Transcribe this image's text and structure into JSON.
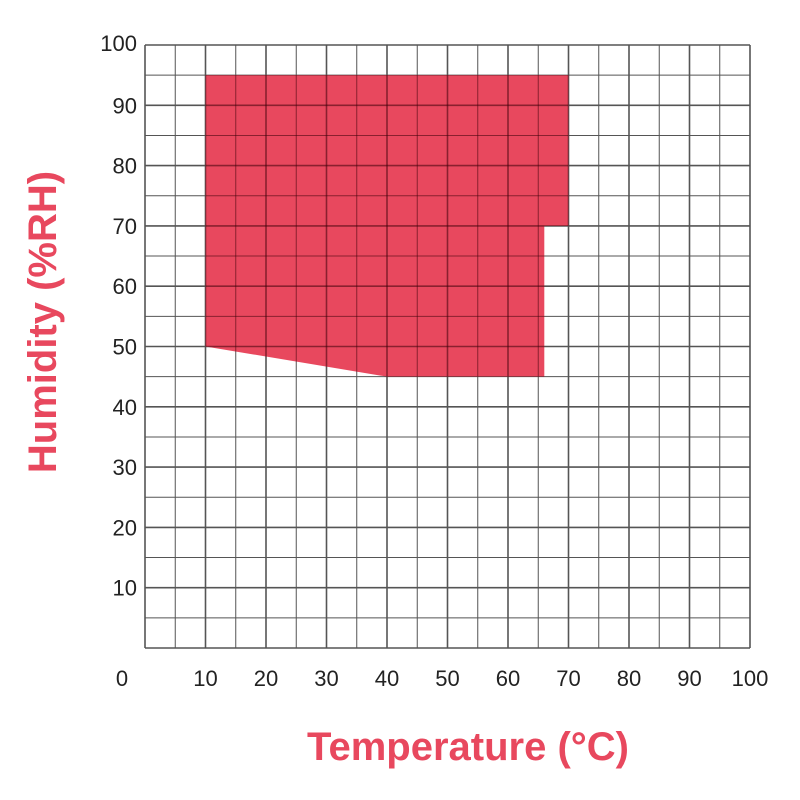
{
  "chart_data": {
    "type": "area",
    "xlabel": "Temperature (°C)",
    "ylabel": "Humidity (%RH)",
    "xlim": [
      0,
      100
    ],
    "ylim": [
      0,
      100
    ],
    "x_ticks": [
      "0",
      "10",
      "20",
      "30",
      "40",
      "50",
      "60",
      "70",
      "80",
      "90",
      "100"
    ],
    "y_ticks": [
      "10",
      "20",
      "30",
      "40",
      "50",
      "60",
      "70",
      "80",
      "90",
      "100"
    ],
    "grid": true,
    "grid_minor_step": 5,
    "region": {
      "points": [
        [
          10,
          95
        ],
        [
          70,
          95
        ],
        [
          70,
          70
        ],
        [
          66,
          70
        ],
        [
          66,
          45
        ],
        [
          40,
          45
        ],
        [
          10,
          50
        ]
      ]
    },
    "colors": {
      "region": "#e8485e",
      "label": "#e8485e",
      "grid": "#333333"
    }
  }
}
